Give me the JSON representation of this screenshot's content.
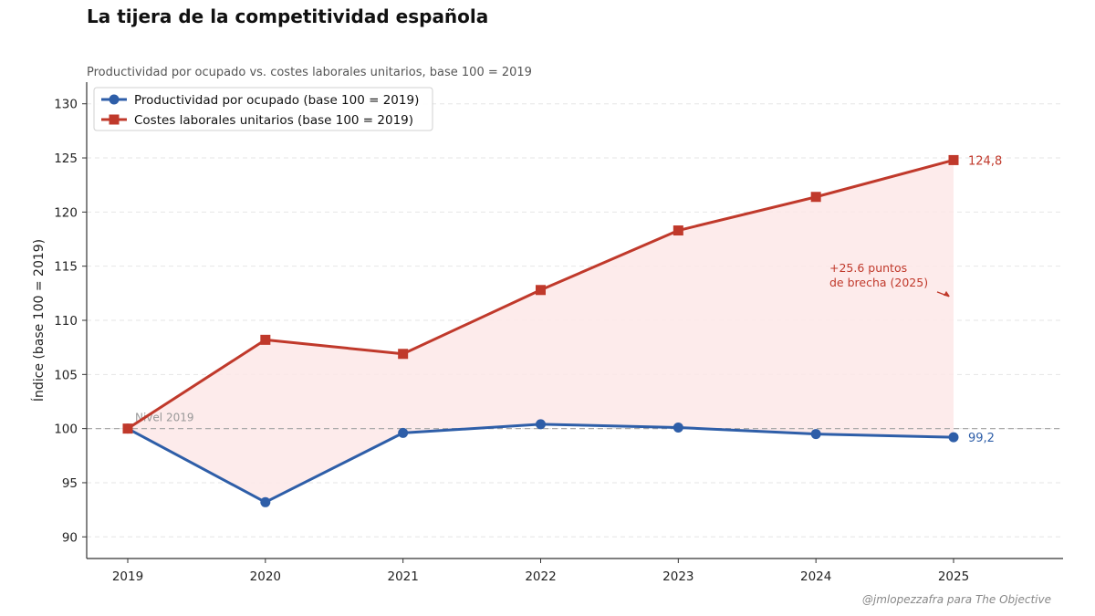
{
  "title": "La tijera de la competitividad española",
  "subtitle": "Productividad por ocupado vs. costes laborales unitarios, base 100 = 2019",
  "credit": "@jmlopezzafra para The Objective",
  "chart_data": {
    "type": "line",
    "x": [
      2019,
      2020,
      2021,
      2022,
      2023,
      2024,
      2025
    ],
    "xlabels": [
      "2019",
      "2020",
      "2021",
      "2022",
      "2023",
      "2024",
      "2025"
    ],
    "ylabel": "Índice (base 100 = 2019)",
    "ylim": [
      88,
      132
    ],
    "yticks": [
      90,
      95,
      100,
      105,
      110,
      115,
      120,
      125,
      130
    ],
    "grid": true,
    "legend_position": "top-left",
    "series": [
      {
        "name": "Productividad por ocupado (base 100 = 2019)",
        "marker": "circle",
        "color": "#2E5EA8",
        "values": [
          100.0,
          93.2,
          99.6,
          100.4,
          100.1,
          99.5,
          99.2
        ],
        "end_label": "99,2"
      },
      {
        "name": "Costes laborales unitarios (base 100 = 2019)",
        "marker": "square",
        "color": "#C0392B",
        "values": [
          100.0,
          108.2,
          106.9,
          112.8,
          118.3,
          121.4,
          124.8
        ],
        "end_label": "124,8"
      }
    ],
    "fill_between": {
      "color": "#FDE8E8"
    },
    "reference_line": {
      "y": 100,
      "label": "Nivel 2019"
    },
    "annotation": {
      "text_line1": "+25.6 puntos",
      "text_line2": "de brecha (2025)",
      "x": 2025,
      "y": 112.2
    }
  }
}
